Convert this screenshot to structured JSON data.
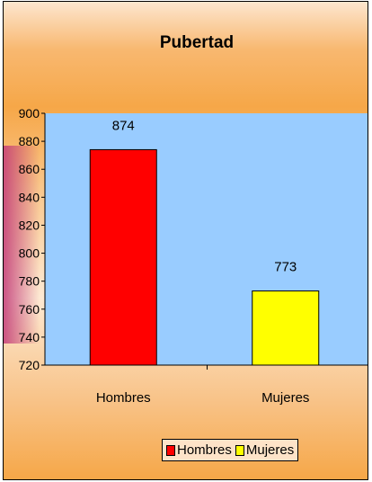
{
  "chart_data": {
    "type": "bar",
    "title": "Pubertad",
    "categories": [
      "Hombres",
      "Mujeres"
    ],
    "values": [
      874,
      773
    ],
    "colors": [
      "#ff0000",
      "#ffff00"
    ],
    "ylim": [
      720,
      900
    ],
    "yticks": [
      "720",
      "740",
      "760",
      "780",
      "800",
      "820",
      "840",
      "860",
      "880",
      "900"
    ],
    "data_labels": [
      "874",
      "773"
    ],
    "plot_background": "#99ccff",
    "legend": {
      "position": "bottom",
      "entries": [
        "Hombres",
        "Mujeres"
      ]
    },
    "grid": false
  }
}
